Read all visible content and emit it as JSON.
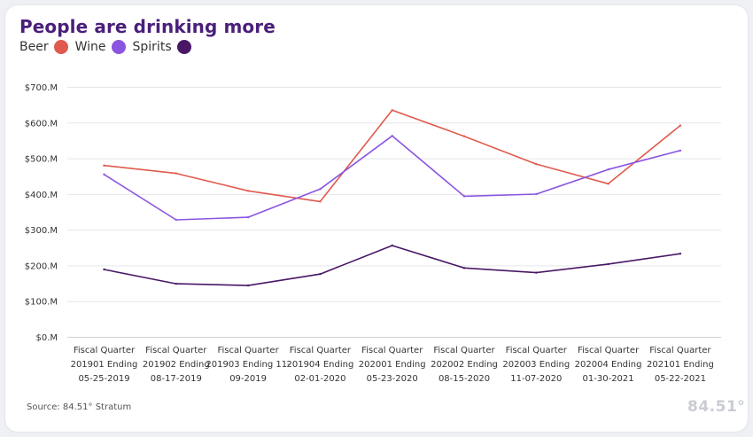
{
  "chart": {
    "title": "People are drinking more",
    "source": "Source: 84.51° Stratum",
    "logo_text": "84.51°"
  },
  "chart_data": {
    "type": "line",
    "title": "People are drinking more",
    "xlabel": "",
    "ylabel": "",
    "ylim": [
      0,
      700
    ],
    "yticks": [
      0,
      100,
      200,
      300,
      400,
      500,
      600,
      700
    ],
    "ytick_labels": [
      "$0.M",
      "$100.M",
      "$200.M",
      "$300.M",
      "$400.M",
      "$500.M",
      "$600.M",
      "$700.M"
    ],
    "grid": "horizontal",
    "legend_position": "top-left",
    "categories": [
      [
        "Fiscal Quarter",
        "201901 Ending",
        "05-25-2019"
      ],
      [
        "Fiscal Quarter",
        "201902 Ending",
        "08-17-2019"
      ],
      [
        "Fiscal Quarter",
        "201903 Ending 11-",
        "09-2019"
      ],
      [
        "Fiscal Quarter",
        "201904 Ending",
        "02-01-2020"
      ],
      [
        "Fiscal Quarter",
        "202001 Ending",
        "05-23-2020"
      ],
      [
        "Fiscal Quarter",
        "202002 Ending",
        "08-15-2020"
      ],
      [
        "Fiscal Quarter",
        "202003 Ending",
        "11-07-2020"
      ],
      [
        "Fiscal Quarter",
        "202004 Ending",
        "01-30-2021"
      ],
      [
        "Fiscal Quarter",
        "202101 Ending",
        "05-22-2021"
      ]
    ],
    "series": [
      {
        "name": "Beer",
        "color": "#e05a4e",
        "values": [
          481,
          459,
          410,
          380,
          636,
          563,
          485,
          430,
          593
        ]
      },
      {
        "name": "Wine",
        "color": "#8a55e0",
        "values": [
          456,
          329,
          336,
          415,
          564,
          395,
          401,
          470,
          523
        ]
      },
      {
        "name": "Spirits",
        "color": "#4a1766",
        "values": [
          190,
          150,
          145,
          177,
          257,
          194,
          181,
          205,
          234
        ]
      }
    ]
  }
}
